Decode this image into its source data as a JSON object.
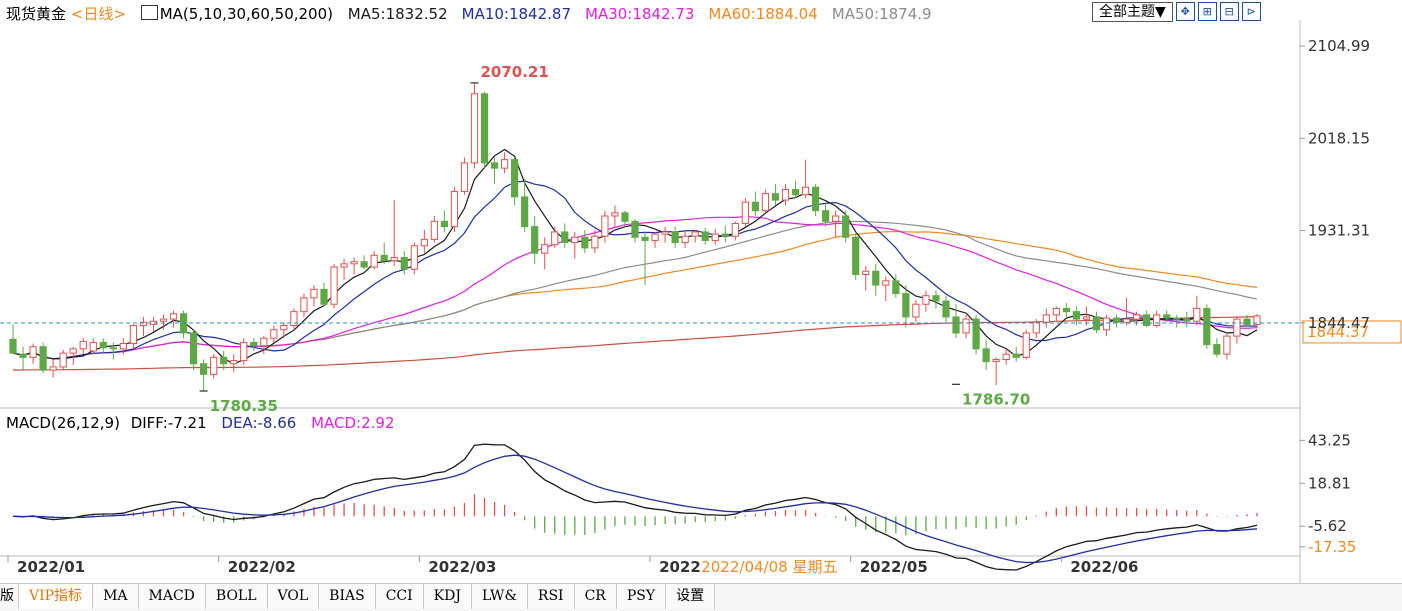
{
  "header": {
    "instrument": "现货黄金",
    "period": "<日线>",
    "ma_params": "MA(5,10,30,60,50,200)",
    "ma_values": [
      {
        "label": "MA5:1832.52",
        "color": "#1a1a1a"
      },
      {
        "label": "MA10:1842.87",
        "color": "#1f2fa3"
      },
      {
        "label": "MA30:1842.73",
        "color": "#e020e0"
      },
      {
        "label": "MA60:1884.04",
        "color": "#f08a1e"
      },
      {
        "label": "MA50:1874.9",
        "color": "#8c8c8c"
      }
    ],
    "theme_button": "全部主题▼",
    "tool_icons": [
      "expand-icon",
      "layout-a-icon",
      "layout-b-icon",
      "layout-c-icon"
    ],
    "tool_glyphs": [
      "✥",
      "⊞",
      "⊟",
      "⊳"
    ]
  },
  "macd_legend": {
    "params": "MACD(26,12,9)",
    "diff": "DIFF:-7.21",
    "dea": "DEA:-8.66",
    "macd": "MACD:2.92"
  },
  "tabs": [
    "版",
    "VIP指标",
    "MA",
    "MACD",
    "BOLL",
    "VOL",
    "BIAS",
    "CCI",
    "KDJ",
    "LW&",
    "RSI",
    "CR",
    "PSY",
    "设置"
  ],
  "active_tab": 1,
  "colors": {
    "up": "#e05252",
    "down": "#5ea946",
    "ma5": "#1a1a1a",
    "ma10": "#1f2fa3",
    "ma30": "#e020e0",
    "ma60": "#f08a1e",
    "ma50": "#8c8c8c",
    "ma200": "#d05040",
    "dashed": "#2a8ecf",
    "axis_text": "#333333",
    "macd_up": "#e05252",
    "macd_down": "#5ea946"
  },
  "chart_data": [
    {
      "type": "candlestick",
      "title": "现货黄金 <日线>",
      "x_labels": [
        "2022/01",
        "2022/02",
        "2022/03",
        "2022",
        "2022/05",
        "2022/06"
      ],
      "x_label_positions": [
        0,
        21,
        41,
        64,
        84,
        105
      ],
      "cursor_label": "2022/04/08 星期五",
      "cursor_index": 69,
      "y_ticks": [
        "2104.99",
        "2018.15",
        "1931.31",
        "1844.47"
      ],
      "y_tick_values": [
        2104.99,
        2018.15,
        1931.31,
        1844.47
      ],
      "ylim": [
        1770.0,
        2120.0
      ],
      "current_price": "1844.37",
      "current_value": 1844.37,
      "annotations": [
        {
          "text": "2070.21",
          "index": 46,
          "value": 2070.21,
          "kind": "high"
        },
        {
          "text": "1780.35",
          "index": 19,
          "value": 1780.35,
          "kind": "low"
        },
        {
          "text": "1786.70",
          "index": 94,
          "value": 1786.7,
          "kind": "low"
        }
      ],
      "ohlc": [
        [
          1829,
          1843,
          1815,
          1816
        ],
        [
          1815,
          1822,
          1800,
          1812
        ],
        [
          1812,
          1825,
          1806,
          1822
        ],
        [
          1822,
          1826,
          1797,
          1800
        ],
        [
          1800,
          1810,
          1793,
          1803
        ],
        [
          1803,
          1819,
          1800,
          1816
        ],
        [
          1816,
          1822,
          1805,
          1820
        ],
        [
          1820,
          1830,
          1815,
          1827
        ],
        [
          1818,
          1830,
          1815,
          1826
        ],
        [
          1826,
          1830,
          1815,
          1821
        ],
        [
          1821,
          1826,
          1810,
          1820
        ],
        [
          1820,
          1830,
          1815,
          1825
        ],
        [
          1825,
          1843,
          1820,
          1842
        ],
        [
          1842,
          1850,
          1832,
          1845
        ],
        [
          1843,
          1850,
          1836,
          1846
        ],
        [
          1846,
          1852,
          1838,
          1848
        ],
        [
          1848,
          1856,
          1840,
          1853
        ],
        [
          1853,
          1856,
          1830,
          1835
        ],
        [
          1835,
          1838,
          1800,
          1806
        ],
        [
          1806,
          1810,
          1780,
          1796
        ],
        [
          1796,
          1815,
          1792,
          1812
        ],
        [
          1812,
          1818,
          1800,
          1806
        ],
        [
          1806,
          1815,
          1798,
          1809
        ],
        [
          1809,
          1830,
          1805,
          1826
        ],
        [
          1826,
          1830,
          1818,
          1823
        ],
        [
          1823,
          1832,
          1815,
          1830
        ],
        [
          1830,
          1842,
          1826,
          1838
        ],
        [
          1838,
          1845,
          1830,
          1842
        ],
        [
          1842,
          1858,
          1838,
          1855
        ],
        [
          1855,
          1872,
          1850,
          1868
        ],
        [
          1868,
          1880,
          1860,
          1876
        ],
        [
          1876,
          1882,
          1860,
          1862
        ],
        [
          1862,
          1900,
          1858,
          1897
        ],
        [
          1897,
          1905,
          1885,
          1900
        ],
        [
          1900,
          1906,
          1890,
          1902
        ],
        [
          1902,
          1908,
          1895,
          1897
        ],
        [
          1897,
          1912,
          1895,
          1908
        ],
        [
          1908,
          1920,
          1900,
          1903
        ],
        [
          1903,
          1960,
          1898,
          1906
        ],
        [
          1906,
          1912,
          1890,
          1895
        ],
        [
          1895,
          1920,
          1890,
          1917
        ],
        [
          1917,
          1932,
          1910,
          1923
        ],
        [
          1923,
          1945,
          1920,
          1940
        ],
        [
          1940,
          1950,
          1930,
          1935
        ],
        [
          1935,
          1972,
          1930,
          1968
        ],
        [
          1968,
          2000,
          1965,
          1995
        ],
        [
          1995,
          2070,
          1990,
          2060
        ],
        [
          2060,
          2062,
          1990,
          1995
        ],
        [
          1995,
          2000,
          1975,
          1990
        ],
        [
          1990,
          2005,
          1985,
          1998
        ],
        [
          1998,
          2000,
          1955,
          1963
        ],
        [
          1963,
          1980,
          1930,
          1935
        ],
        [
          1935,
          1945,
          1900,
          1910
        ],
        [
          1910,
          1925,
          1895,
          1918
        ],
        [
          1918,
          1935,
          1915,
          1930
        ],
        [
          1930,
          1938,
          1915,
          1920
        ],
        [
          1920,
          1930,
          1905,
          1925
        ],
        [
          1925,
          1932,
          1910,
          1915
        ],
        [
          1915,
          1932,
          1910,
          1926
        ],
        [
          1926,
          1950,
          1920,
          1945
        ],
        [
          1945,
          1955,
          1935,
          1948
        ],
        [
          1948,
          1950,
          1935,
          1940
        ],
        [
          1940,
          1942,
          1920,
          1925
        ],
        [
          1925,
          1930,
          1880,
          1922
        ],
        [
          1922,
          1930,
          1915,
          1928
        ],
        [
          1928,
          1935,
          1920,
          1930
        ],
        [
          1930,
          1935,
          1915,
          1920
        ],
        [
          1920,
          1930,
          1915,
          1926
        ],
        [
          1926,
          1932,
          1920,
          1930
        ],
        [
          1930,
          1934,
          1918,
          1922
        ],
        [
          1922,
          1933,
          1918,
          1928
        ],
        [
          1928,
          1936,
          1920,
          1926
        ],
        [
          1926,
          1940,
          1922,
          1938
        ],
        [
          1938,
          1962,
          1935,
          1958
        ],
        [
          1958,
          1968,
          1945,
          1950
        ],
        [
          1950,
          1970,
          1948,
          1966
        ],
        [
          1966,
          1975,
          1955,
          1960
        ],
        [
          1960,
          1975,
          1955,
          1970
        ],
        [
          1970,
          1978,
          1962,
          1965
        ],
        [
          1965,
          1998,
          1962,
          1972
        ],
        [
          1972,
          1975,
          1945,
          1950
        ],
        [
          1950,
          1958,
          1935,
          1940
        ],
        [
          1940,
          1950,
          1925,
          1945
        ],
        [
          1945,
          1950,
          1920,
          1925
        ],
        [
          1925,
          1930,
          1885,
          1890
        ],
        [
          1890,
          1898,
          1875,
          1893
        ],
        [
          1893,
          1900,
          1870,
          1880
        ],
        [
          1880,
          1888,
          1865,
          1884
        ],
        [
          1884,
          1890,
          1868,
          1872
        ],
        [
          1872,
          1880,
          1840,
          1850
        ],
        [
          1850,
          1866,
          1845,
          1862
        ],
        [
          1862,
          1875,
          1855,
          1870
        ],
        [
          1870,
          1875,
          1858,
          1865
        ],
        [
          1865,
          1870,
          1845,
          1850
        ],
        [
          1850,
          1862,
          1830,
          1835
        ],
        [
          1835,
          1852,
          1830,
          1848
        ],
        [
          1848,
          1852,
          1815,
          1820
        ],
        [
          1820,
          1828,
          1800,
          1808
        ],
        [
          1808,
          1812,
          1786,
          1810
        ],
        [
          1810,
          1820,
          1805,
          1815
        ],
        [
          1815,
          1822,
          1808,
          1812
        ],
        [
          1812,
          1838,
          1810,
          1835
        ],
        [
          1835,
          1848,
          1830,
          1845
        ],
        [
          1845,
          1858,
          1840,
          1852
        ],
        [
          1852,
          1860,
          1845,
          1858
        ],
        [
          1858,
          1863,
          1850,
          1855
        ],
        [
          1855,
          1860,
          1842,
          1848
        ],
        [
          1848,
          1860,
          1842,
          1850
        ],
        [
          1850,
          1855,
          1835,
          1838
        ],
        [
          1838,
          1852,
          1832,
          1849
        ],
        [
          1849,
          1852,
          1840,
          1845
        ],
        [
          1845,
          1868,
          1842,
          1848
        ],
        [
          1848,
          1855,
          1842,
          1852
        ],
        [
          1852,
          1856,
          1840,
          1842
        ],
        [
          1842,
          1856,
          1840,
          1852
        ],
        [
          1852,
          1856,
          1845,
          1849
        ],
        [
          1849,
          1852,
          1840,
          1848
        ],
        [
          1848,
          1855,
          1840,
          1846
        ],
        [
          1846,
          1870,
          1842,
          1858
        ],
        [
          1858,
          1862,
          1820,
          1824
        ],
        [
          1824,
          1830,
          1812,
          1815
        ],
        [
          1815,
          1835,
          1810,
          1832
        ],
        [
          1832,
          1850,
          1825,
          1848
        ],
        [
          1848,
          1852,
          1840,
          1843
        ],
        [
          1843,
          1853,
          1840,
          1851
        ]
      ]
    },
    {
      "type": "bar",
      "title": "MACD(26,12,9)",
      "y_ticks": [
        "43.25",
        "18.81",
        "-5.62",
        "-17.35"
      ],
      "y_tick_values": [
        43.25,
        18.81,
        -5.62,
        -17.35
      ],
      "ylim": [
        -22.0,
        48.0
      ]
    }
  ],
  "tab_glyph_note": ""
}
